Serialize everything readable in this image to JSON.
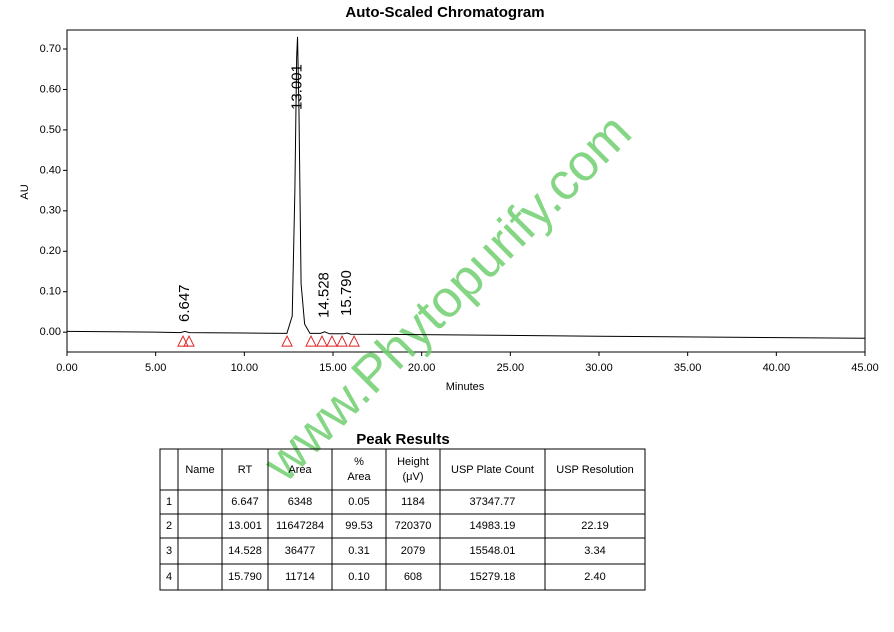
{
  "chart_data": {
    "type": "line",
    "title": "Auto-Scaled Chromatogram",
    "xlabel": "Minutes",
    "ylabel": "AU",
    "x": [
      0,
      5,
      6.4,
      6.647,
      6.9,
      10,
      12.4,
      12.7,
      12.85,
      12.95,
      13.0,
      13.08,
      13.2,
      13.4,
      13.7,
      14.3,
      14.528,
      14.8,
      15.6,
      15.79,
      16.0,
      20,
      30,
      45
    ],
    "series": [
      {
        "name": "AU",
        "color": "#000000",
        "values": [
          0.002,
          0.0,
          -0.001,
          0.002,
          -0.001,
          -0.002,
          -0.003,
          0.04,
          0.35,
          0.68,
          0.73,
          0.55,
          0.12,
          0.02,
          -0.003,
          -0.003,
          0.001,
          -0.004,
          -0.004,
          -0.002,
          -0.005,
          -0.006,
          -0.01,
          -0.015
        ]
      }
    ],
    "peak_labels": [
      {
        "x": 6.647,
        "label": "6.647"
      },
      {
        "x": 13.001,
        "label": "13.001"
      },
      {
        "x": 14.528,
        "label": "14.528"
      },
      {
        "x": 15.79,
        "label": "15.790"
      }
    ],
    "integration_marks": {
      "color": "#e02020",
      "x": [
        6.54,
        6.88,
        12.41,
        13.76,
        14.38,
        14.94,
        15.51,
        16.19
      ],
      "y": -0.022
    },
    "xlim": [
      0,
      45
    ],
    "ylim": [
      -0.049,
      0.747
    ],
    "xticks": [
      {
        "value": 0,
        "label": "0.00"
      },
      {
        "value": 5,
        "label": "5.00"
      },
      {
        "value": 10,
        "label": "10.00"
      },
      {
        "value": 15,
        "label": "15.00"
      },
      {
        "value": 20,
        "label": "20.00"
      },
      {
        "value": 25,
        "label": "25.00"
      },
      {
        "value": 30,
        "label": "30.00"
      },
      {
        "value": 35,
        "label": "35.00"
      },
      {
        "value": 40,
        "label": "40.00"
      },
      {
        "value": 45,
        "label": "45.00"
      }
    ],
    "yticks": [
      {
        "value": 0,
        "label": "0.00"
      },
      {
        "value": 0.1,
        "label": "0.10"
      },
      {
        "value": 0.2,
        "label": "0.20"
      },
      {
        "value": 0.3,
        "label": "0.30"
      },
      {
        "value": 0.4,
        "label": "0.40"
      },
      {
        "value": 0.5,
        "label": "0.50"
      },
      {
        "value": 0.6,
        "label": "0.60"
      },
      {
        "value": 0.7,
        "label": "0.70"
      }
    ],
    "watermark": "www.Phytopurify.com"
  },
  "table": {
    "title": "Peak Results",
    "header": [
      null,
      "Name",
      "RT",
      "Area",
      "% Area",
      "Height (μV)",
      "USP Plate Count",
      "USP Resolution"
    ],
    "rows": [
      [
        "1",
        null,
        "6.647",
        "6348",
        "0.05",
        "1184",
        "37347.77",
        null
      ],
      [
        "2",
        null,
        "13.001",
        "11647284",
        "99.53",
        "720370",
        "14983.19",
        "22.19"
      ],
      [
        "3",
        null,
        "14.528",
        "36477",
        "0.31",
        "2079",
        "15548.01",
        "3.34"
      ],
      [
        "4",
        null,
        "15.790",
        "11714",
        "0.10",
        "608",
        "15279.18",
        "2.40"
      ]
    ]
  }
}
